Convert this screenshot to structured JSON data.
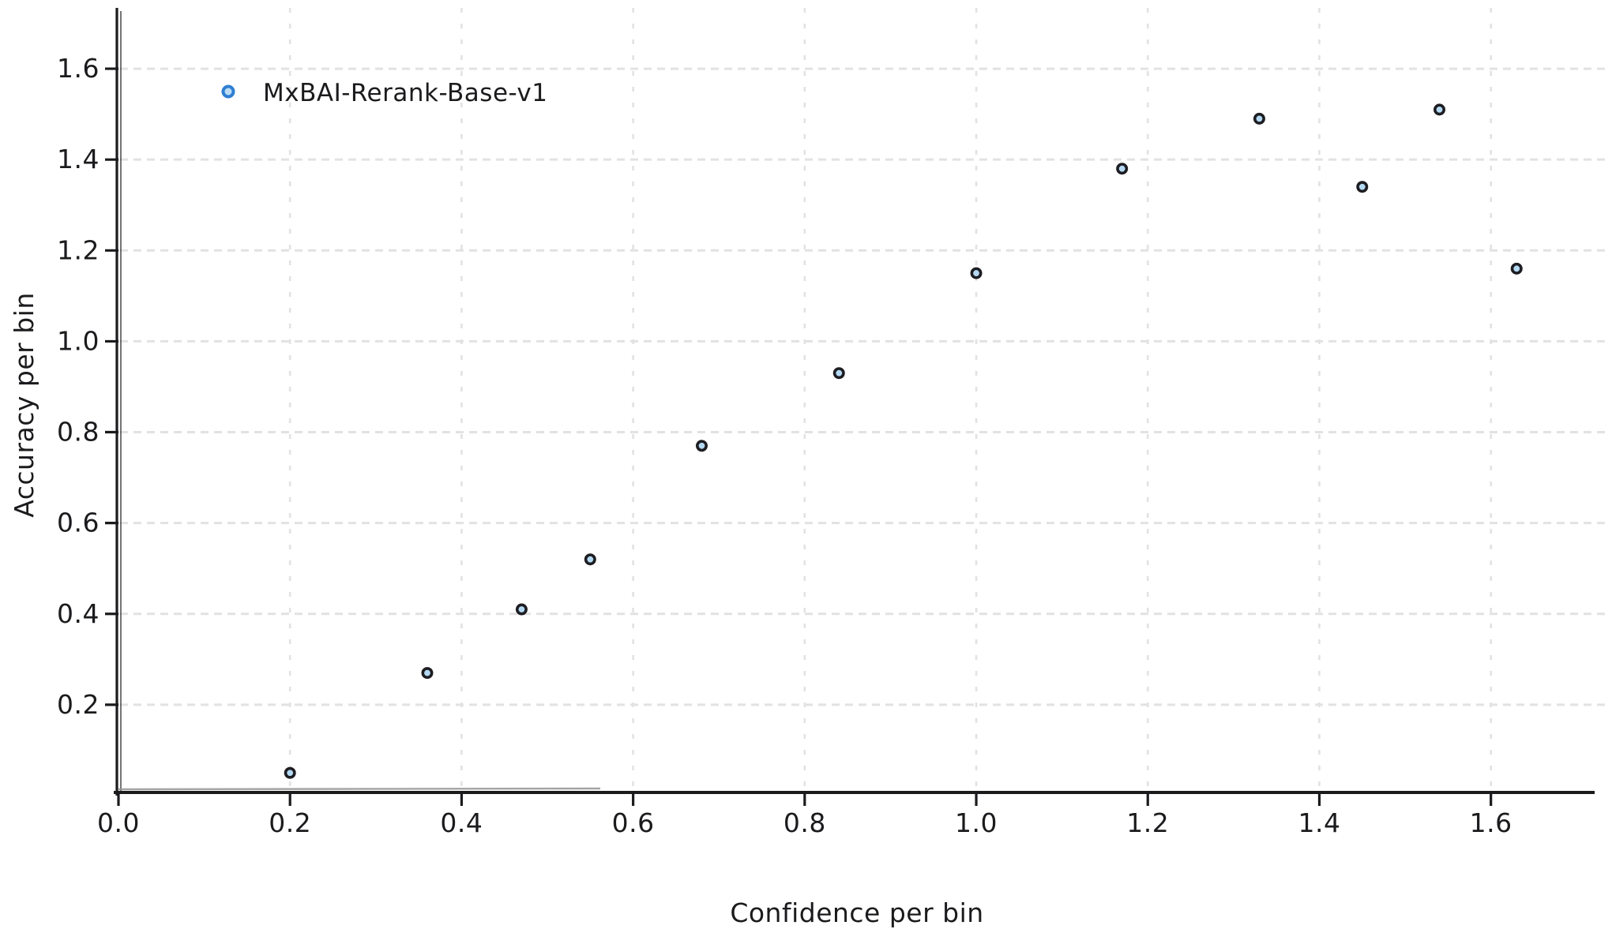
{
  "chart_data": {
    "type": "scatter",
    "title": "",
    "xlabel": "Confidence per bin",
    "ylabel": "Accuracy per bin",
    "xlim": [
      0,
      1.72
    ],
    "ylim": [
      0,
      1.72
    ],
    "grid": "dashed",
    "legend_position": "upper-left-inside",
    "x_ticks": [
      0.0,
      0.2,
      0.4,
      0.6,
      0.8,
      1.0,
      1.2,
      1.4,
      1.6
    ],
    "y_ticks": [
      0.2,
      0.4,
      0.6,
      0.8,
      1.0,
      1.2,
      1.4,
      1.6
    ],
    "series": [
      {
        "name": "MxBAI-Rerank-Base-v1",
        "points": [
          [
            0.2,
            0.05
          ],
          [
            0.36,
            0.27
          ],
          [
            0.47,
            0.41
          ],
          [
            0.55,
            0.52
          ],
          [
            0.68,
            0.77
          ],
          [
            0.84,
            0.93
          ],
          [
            1.0,
            1.15
          ],
          [
            1.17,
            1.38
          ],
          [
            1.33,
            1.49
          ],
          [
            1.45,
            1.34
          ],
          [
            1.54,
            1.51
          ],
          [
            1.63,
            1.16
          ]
        ]
      }
    ],
    "colors": {
      "background": "#ffffff",
      "ink": "#1b1b1e",
      "grid": "#e2e2e2",
      "axis_shadow": "#949494",
      "point_fill": "#b4d9f3",
      "point_stroke": "#1d1d22",
      "legend_marker_ring": "#2f7fd2",
      "legend_marker_fill": "#bcdcf6"
    }
  }
}
